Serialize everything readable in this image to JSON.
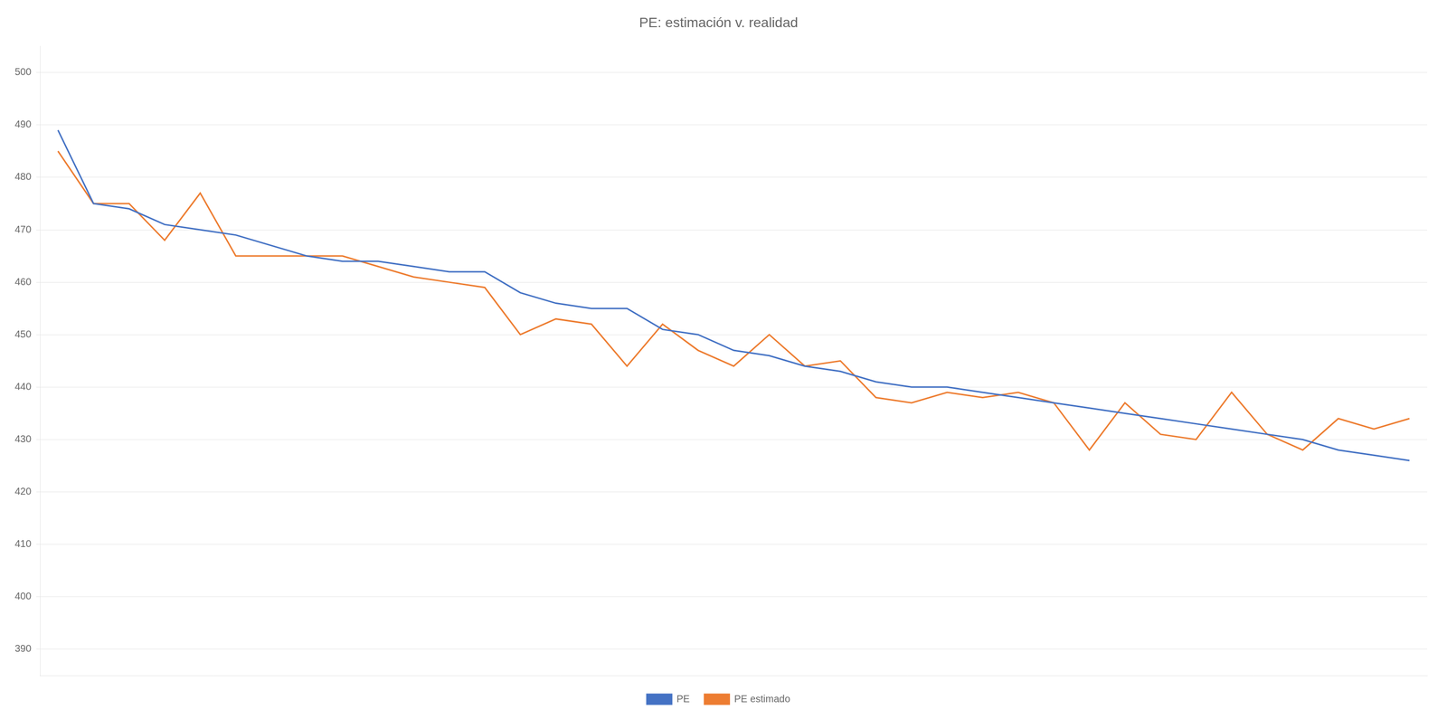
{
  "chart_data": {
    "type": "line",
    "title": "PE: estimación v. realidad",
    "categories": [
      null,
      null,
      null,
      null,
      null,
      null,
      null,
      null,
      null,
      null,
      null,
      null,
      null,
      null,
      null,
      null,
      null,
      null,
      null,
      null,
      null,
      null,
      null,
      null,
      null,
      null,
      null,
      null,
      null,
      null,
      null,
      null,
      null,
      null,
      null,
      null,
      null,
      null,
      null
    ],
    "series": [
      {
        "name": "PE",
        "color": "#4472c4",
        "values": [
          489,
          475,
          474,
          471,
          470,
          469,
          467,
          465,
          464,
          464,
          463,
          462,
          462,
          458,
          456,
          455,
          455,
          451,
          450,
          447,
          446,
          444,
          443,
          441,
          440,
          440,
          439,
          438,
          437,
          436,
          435,
          434,
          433,
          432,
          431,
          430,
          428,
          427,
          426
        ]
      },
      {
        "name": "PE estimado",
        "color": "#ed7d31",
        "values": [
          485,
          475,
          475,
          468,
          477,
          465,
          465,
          465,
          465,
          463,
          461,
          460,
          459,
          450,
          453,
          452,
          444,
          452,
          447,
          444,
          450,
          444,
          445,
          438,
          437,
          439,
          438,
          439,
          437,
          428,
          437,
          431,
          430,
          439,
          431,
          428,
          434,
          432,
          434
        ]
      }
    ],
    "ylim": [
      385,
      505
    ],
    "yticks": [
      390,
      400,
      410,
      420,
      430,
      440,
      450,
      460,
      470,
      480,
      490,
      500
    ],
    "grid": true,
    "legend": "bottom",
    "tick_labels": "y"
  }
}
